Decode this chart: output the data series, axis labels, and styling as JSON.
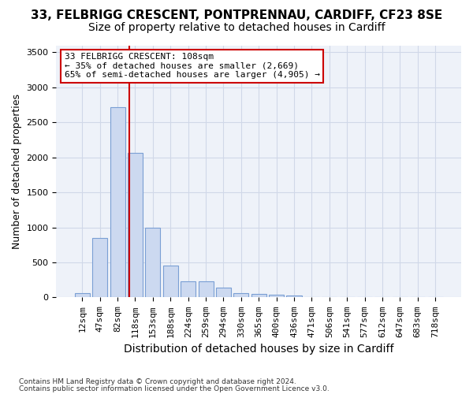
{
  "title_line1": "33, FELBRIGG CRESCENT, PONTPRENNAU, CARDIFF, CF23 8SE",
  "title_line2": "Size of property relative to detached houses in Cardiff",
  "xlabel": "Distribution of detached houses by size in Cardiff",
  "ylabel": "Number of detached properties",
  "bar_values": [
    60,
    850,
    2720,
    2060,
    1000,
    450,
    230,
    230,
    140,
    65,
    55,
    35,
    25,
    5,
    0,
    0,
    0,
    0,
    0,
    0,
    0
  ],
  "bar_labels": [
    "12sqm",
    "47sqm",
    "82sqm",
    "118sqm",
    "153sqm",
    "188sqm",
    "224sqm",
    "259sqm",
    "294sqm",
    "330sqm",
    "365sqm",
    "400sqm",
    "436sqm",
    "471sqm",
    "506sqm",
    "541sqm",
    "577sqm",
    "612sqm",
    "647sqm",
    "683sqm",
    "718sqm"
  ],
  "bar_color": "#ccd9f0",
  "bar_edgecolor": "#7a9fd4",
  "grid_color": "#d0d8e8",
  "background_color": "#eef2f9",
  "vline_x": 2.65,
  "vline_color": "#cc0000",
  "annotation_text": "33 FELBRIGG CRESCENT: 108sqm\n← 35% of detached houses are smaller (2,669)\n65% of semi-detached houses are larger (4,905) →",
  "annotation_box_color": "#cc0000",
  "ylim": [
    0,
    3600
  ],
  "yticks": [
    0,
    500,
    1000,
    1500,
    2000,
    2500,
    3000,
    3500
  ],
  "footer_line1": "Contains HM Land Registry data © Crown copyright and database right 2024.",
  "footer_line2": "Contains public sector information licensed under the Open Government Licence v3.0.",
  "title_fontsize": 11,
  "subtitle_fontsize": 10,
  "tick_fontsize": 8,
  "ylabel_fontsize": 9,
  "xlabel_fontsize": 10
}
